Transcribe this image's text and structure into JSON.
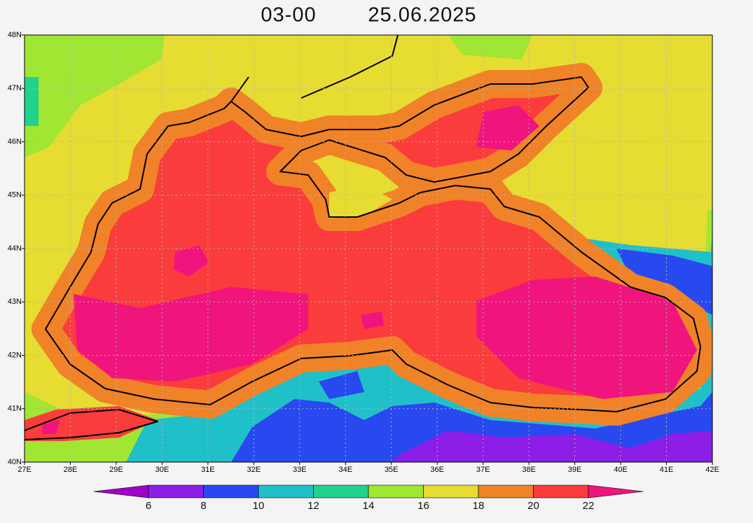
{
  "title": {
    "time": "03-00",
    "date": "25.06.2025"
  },
  "map": {
    "lonlim": [
      27,
      42
    ],
    "latlim": [
      40,
      48
    ],
    "grid": true,
    "lon_ticks": [
      {
        "value": 27,
        "label": "27E"
      },
      {
        "value": 28,
        "label": "28E"
      },
      {
        "value": 29,
        "label": "29E"
      },
      {
        "value": 30,
        "label": "30E"
      },
      {
        "value": 31,
        "label": "31E"
      },
      {
        "value": 32,
        "label": "32E"
      },
      {
        "value": 33,
        "label": "33E"
      },
      {
        "value": 34,
        "label": "34E"
      },
      {
        "value": 35,
        "label": "35E"
      },
      {
        "value": 36,
        "label": "36E"
      },
      {
        "value": 37,
        "label": "37E"
      },
      {
        "value": 38,
        "label": "38E"
      },
      {
        "value": 39,
        "label": "39E"
      },
      {
        "value": 40,
        "label": "40E"
      },
      {
        "value": 41,
        "label": "41E"
      },
      {
        "value": 42,
        "label": "42E"
      }
    ],
    "lat_ticks": [
      {
        "value": 40,
        "label": "40N"
      },
      {
        "value": 41,
        "label": "41N"
      },
      {
        "value": 42,
        "label": "42N"
      },
      {
        "value": 43,
        "label": "43N"
      },
      {
        "value": 44,
        "label": "44N"
      },
      {
        "value": 45,
        "label": "45N"
      },
      {
        "value": 46,
        "label": "46N"
      },
      {
        "value": 47,
        "label": "47N"
      },
      {
        "value": 48,
        "label": "48N"
      }
    ]
  },
  "colorbar": {
    "levels": [
      6,
      8,
      10,
      12,
      14,
      16,
      18,
      20,
      22
    ],
    "colors": [
      "#a000c8",
      "#8c1ee6",
      "#2848f0",
      "#20c0c8",
      "#20d28c",
      "#a0e632",
      "#e6dc32",
      "#f08228",
      "#fa3c3c",
      "#f0147d"
    ]
  }
}
